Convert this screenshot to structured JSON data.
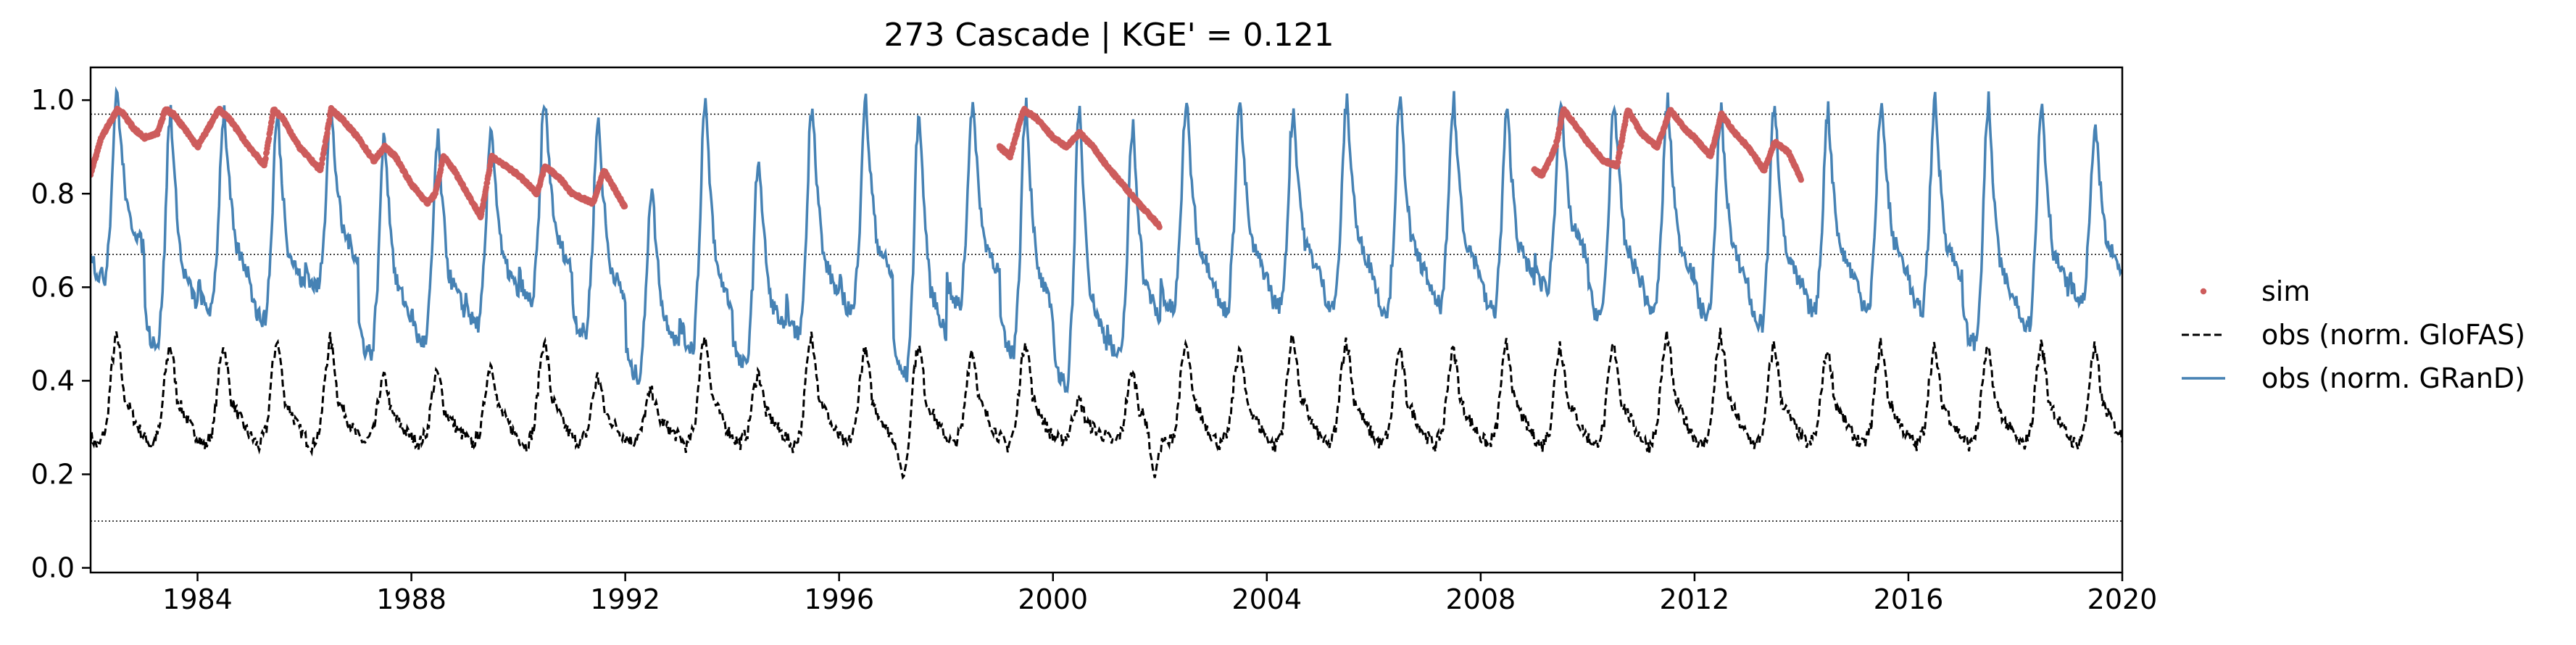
{
  "chart_data": {
    "type": "line",
    "title": "273  Cascade | KGE' = 0.121",
    "xlabel": "",
    "ylabel": "",
    "xlim": [
      1982.0,
      2020.0
    ],
    "ylim": [
      -0.01,
      1.07
    ],
    "x_ticks": [
      1984,
      1988,
      1992,
      1996,
      2000,
      2004,
      2008,
      2012,
      2016,
      2020
    ],
    "y_ticks": [
      0.0,
      0.2,
      0.4,
      0.6,
      0.8,
      1.0
    ],
    "y_tick_labels": [
      "0.0",
      "0.2",
      "0.4",
      "0.6",
      "0.8",
      "1.0"
    ],
    "reference_lines": [
      0.1,
      0.67,
      0.97
    ],
    "grid": false,
    "legend_position": "outside right",
    "legend": [
      {
        "label": "sim",
        "style": "dots",
        "color": "#cd5c5c"
      },
      {
        "label": "obs (norm. GloFAS)",
        "style": "dashed",
        "color": "#000000"
      },
      {
        "label": "obs (norm. GRanD)",
        "style": "solid",
        "color": "#4682b4"
      }
    ],
    "series": [
      {
        "name": "sim",
        "color": "#cd5c5c",
        "segments": [
          {
            "x": [
              1982.0,
              1982.1,
              1982.2,
              1982.35,
              1982.5,
              1982.62,
              1982.8,
              1983.0,
              1983.25,
              1983.4,
              1983.55,
              1983.75,
              1984.0,
              1984.25,
              1984.4,
              1984.6,
              1984.9,
              1985.25,
              1985.42,
              1985.6,
              1985.9,
              1986.3,
              1986.5,
              1986.7,
              1987.0,
              1987.3,
              1987.5,
              1987.7,
              1988.0,
              1988.3,
              1988.45,
              1988.6,
              1988.8,
              1989.0,
              1989.3,
              1989.5,
              1989.75,
              1990.0,
              1990.35,
              1990.5,
              1990.8,
              1991.0,
              1991.4,
              1991.6,
              1992.0
            ],
            "y": [
              0.84,
              0.88,
              0.92,
              0.95,
              0.98,
              0.97,
              0.94,
              0.92,
              0.93,
              0.98,
              0.97,
              0.94,
              0.9,
              0.95,
              0.98,
              0.96,
              0.91,
              0.86,
              0.98,
              0.96,
              0.9,
              0.85,
              0.98,
              0.96,
              0.92,
              0.87,
              0.9,
              0.88,
              0.82,
              0.78,
              0.8,
              0.88,
              0.85,
              0.81,
              0.75,
              0.88,
              0.86,
              0.84,
              0.8,
              0.86,
              0.83,
              0.8,
              0.78,
              0.85,
              0.77
            ]
          },
          {
            "x": [
              1999.0,
              1999.2,
              1999.45,
              1999.7,
              2000.0,
              2000.25,
              2000.5,
              2000.75,
              2001.0,
              2001.3,
              2001.6,
              2002.0
            ],
            "y": [
              0.9,
              0.88,
              0.98,
              0.96,
              0.92,
              0.9,
              0.93,
              0.9,
              0.86,
              0.82,
              0.78,
              0.73
            ]
          },
          {
            "x": [
              2009.0,
              2009.15,
              2009.4,
              2009.55,
              2009.75,
              2010.0,
              2010.3,
              2010.55,
              2010.75,
              2011.0,
              2011.3,
              2011.55,
              2011.8,
              2012.0,
              2012.3,
              2012.5,
              2012.75,
              2013.0,
              2013.3,
              2013.5,
              2013.75,
              2014.0
            ],
            "y": [
              0.85,
              0.84,
              0.9,
              0.98,
              0.95,
              0.91,
              0.87,
              0.86,
              0.98,
              0.93,
              0.9,
              0.98,
              0.94,
              0.92,
              0.88,
              0.97,
              0.93,
              0.9,
              0.85,
              0.91,
              0.89,
              0.83
            ]
          }
        ]
      },
      {
        "name": "obs (norm. GloFAS)",
        "color": "#000000",
        "dash": true,
        "cycle_template": {
          "phase": [
            0.0,
            0.15,
            0.3,
            0.4,
            0.48,
            0.55,
            0.62,
            0.75,
            0.88,
            1.0
          ],
          "level": [
            0.28,
            0.26,
            0.3,
            0.42,
            0.48,
            0.44,
            0.36,
            0.33,
            0.3,
            0.28
          ]
        },
        "peaks": [
          0.5,
          0.48,
          0.48,
          0.49,
          0.49,
          0.41,
          0.42,
          0.44,
          0.49,
          0.41,
          0.38,
          0.5,
          0.42,
          0.5,
          0.47,
          0.48,
          0.47,
          0.49,
          0.36,
          0.42,
          0.48,
          0.47,
          0.5,
          0.49,
          0.47,
          0.47,
          0.48,
          0.48,
          0.48,
          0.5,
          0.5,
          0.48,
          0.47,
          0.48,
          0.47,
          0.47,
          0.48,
          0.47
        ],
        "notable_minima": [
          {
            "x": 1997.2,
            "y": 0.19
          },
          {
            "x": 2001.9,
            "y": 0.19
          }
        ]
      },
      {
        "name": "obs (norm. GRanD)",
        "color": "#4682b4",
        "cycle_template": {
          "phase": [
            0.0,
            0.12,
            0.28,
            0.38,
            0.45,
            0.5,
            0.58,
            0.7,
            0.85,
            1.0
          ],
          "level": [
            0.62,
            0.56,
            0.55,
            0.72,
            0.95,
            1.0,
            0.85,
            0.7,
            0.66,
            0.62
          ]
        },
        "peaks": [
          1.02,
          0.98,
          0.98,
          0.97,
          0.98,
          0.93,
          0.92,
          0.95,
          1.0,
          0.96,
          0.82,
          1.0,
          0.88,
          1.0,
          1.0,
          0.98,
          1.0,
          1.0,
          0.98,
          0.95,
          1.0,
          1.0,
          0.98,
          1.0,
          1.0,
          1.0,
          0.98,
          1.0,
          1.0,
          1.0,
          0.98,
          1.0,
          0.98,
          1.0,
          1.0,
          1.0,
          1.0,
          0.95
        ],
        "troughs": [
          0.62,
          0.48,
          0.55,
          0.53,
          0.6,
          0.46,
          0.48,
          0.52,
          0.57,
          0.5,
          0.41,
          0.47,
          0.43,
          0.5,
          0.55,
          0.41,
          0.56,
          0.46,
          0.39,
          0.45,
          0.55,
          0.55,
          0.56,
          0.56,
          0.55,
          0.56,
          0.55,
          0.6,
          0.54,
          0.55,
          0.54,
          0.52,
          0.55,
          0.56,
          0.55,
          0.48,
          0.52,
          0.57
        ]
      }
    ]
  }
}
